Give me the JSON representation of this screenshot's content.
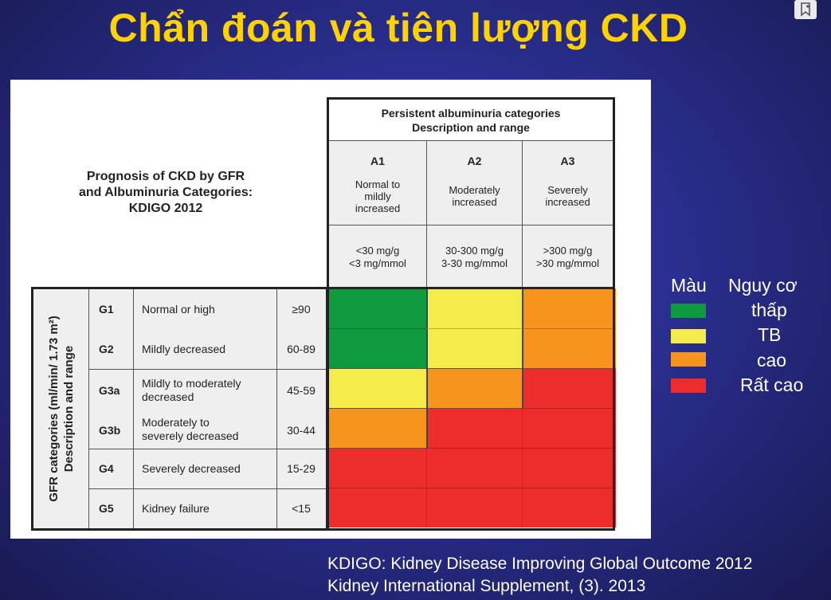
{
  "title": "Chẩn đoán và tiên lượng CKD",
  "panel": {
    "title_lines": [
      "Prognosis of CKD by GFR",
      "and Albuminuria Categories:",
      "KDIGO 2012"
    ],
    "albuminuria_header_lines": [
      "Persistent albuminuria categories",
      "Description and range"
    ],
    "gfr_axis_label_lines": [
      "GFR categories (ml/min/ 1.73 m²)",
      "Description and range"
    ],
    "albuminuria_categories": [
      {
        "code": "A1",
        "desc_lines": [
          "Normal to",
          "mildly",
          "increased"
        ],
        "range_lines": [
          "<30 mg/g",
          "<3 mg/mmol"
        ]
      },
      {
        "code": "A2",
        "desc_lines": [
          "Moderately",
          "increased"
        ],
        "range_lines": [
          "30-300 mg/g",
          "3-30 mg/mmol"
        ]
      },
      {
        "code": "A3",
        "desc_lines": [
          "Severely",
          "increased"
        ],
        "range_lines": [
          ">300 mg/g",
          ">30 mg/mmol"
        ]
      }
    ],
    "gfr_categories": [
      {
        "code": "G1",
        "desc_lines": [
          "Normal or high"
        ],
        "range": "≥90"
      },
      {
        "code": "G2",
        "desc_lines": [
          "Mildly decreased"
        ],
        "range": "60-89"
      },
      {
        "code": "G3a",
        "desc_lines": [
          "Mildly to moderately",
          "decreased"
        ],
        "range": "45-59"
      },
      {
        "code": "G3b",
        "desc_lines": [
          "Moderately to",
          "severely decreased"
        ],
        "range": "30-44"
      },
      {
        "code": "G4",
        "desc_lines": [
          "Severely decreased"
        ],
        "range": "15-29"
      },
      {
        "code": "G5",
        "desc_lines": [
          "Kidney failure"
        ],
        "range": "<15"
      }
    ],
    "risk_matrix": [
      [
        "low",
        "moderate",
        "high"
      ],
      [
        "low",
        "moderate",
        "high"
      ],
      [
        "moderate",
        "high",
        "very_high"
      ],
      [
        "high",
        "very_high",
        "very_high"
      ],
      [
        "very_high",
        "very_high",
        "very_high"
      ],
      [
        "very_high",
        "very_high",
        "very_high"
      ]
    ]
  },
  "colors": {
    "low": "#0f9a3f",
    "moderate": "#f5ec4c",
    "high": "#f7941d",
    "very_high": "#ee2c2c",
    "title": "#ffd200"
  },
  "legend": {
    "header_color": "Màu",
    "header_risk": "Nguy cơ",
    "items": [
      {
        "level": "low",
        "label": "thấp"
      },
      {
        "level": "moderate",
        "label": "TB"
      },
      {
        "level": "high",
        "label": "cao"
      },
      {
        "level": "very_high",
        "label": "Rất cao"
      }
    ]
  },
  "source_lines": [
    "KDIGO: Kidney Disease Improving Global Outcome 2012",
    "Kidney International Supplement, (3). 2013"
  ],
  "icons": {
    "bookmark": "bookmark-icon"
  }
}
